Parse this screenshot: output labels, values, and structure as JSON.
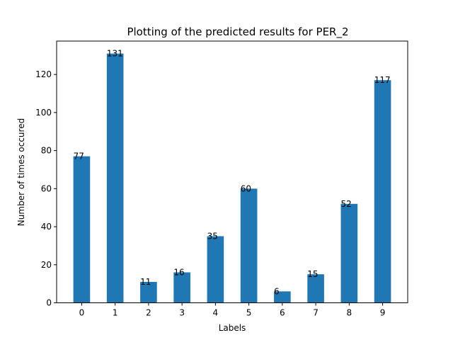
{
  "chart_data": {
    "type": "bar",
    "title": "Plotting of the predicted results for PER_2",
    "xlabel": "Labels",
    "ylabel": "Number of times occured",
    "categories": [
      "0",
      "1",
      "2",
      "3",
      "4",
      "5",
      "6",
      "7",
      "8",
      "9"
    ],
    "values": [
      77,
      131,
      11,
      16,
      35,
      60,
      6,
      15,
      52,
      117
    ],
    "ylim": [
      0,
      137.55
    ],
    "yticks": [
      0,
      20,
      40,
      60,
      80,
      100,
      120
    ],
    "bar_color": "#1f77b4",
    "grid": false,
    "legend": "none"
  }
}
